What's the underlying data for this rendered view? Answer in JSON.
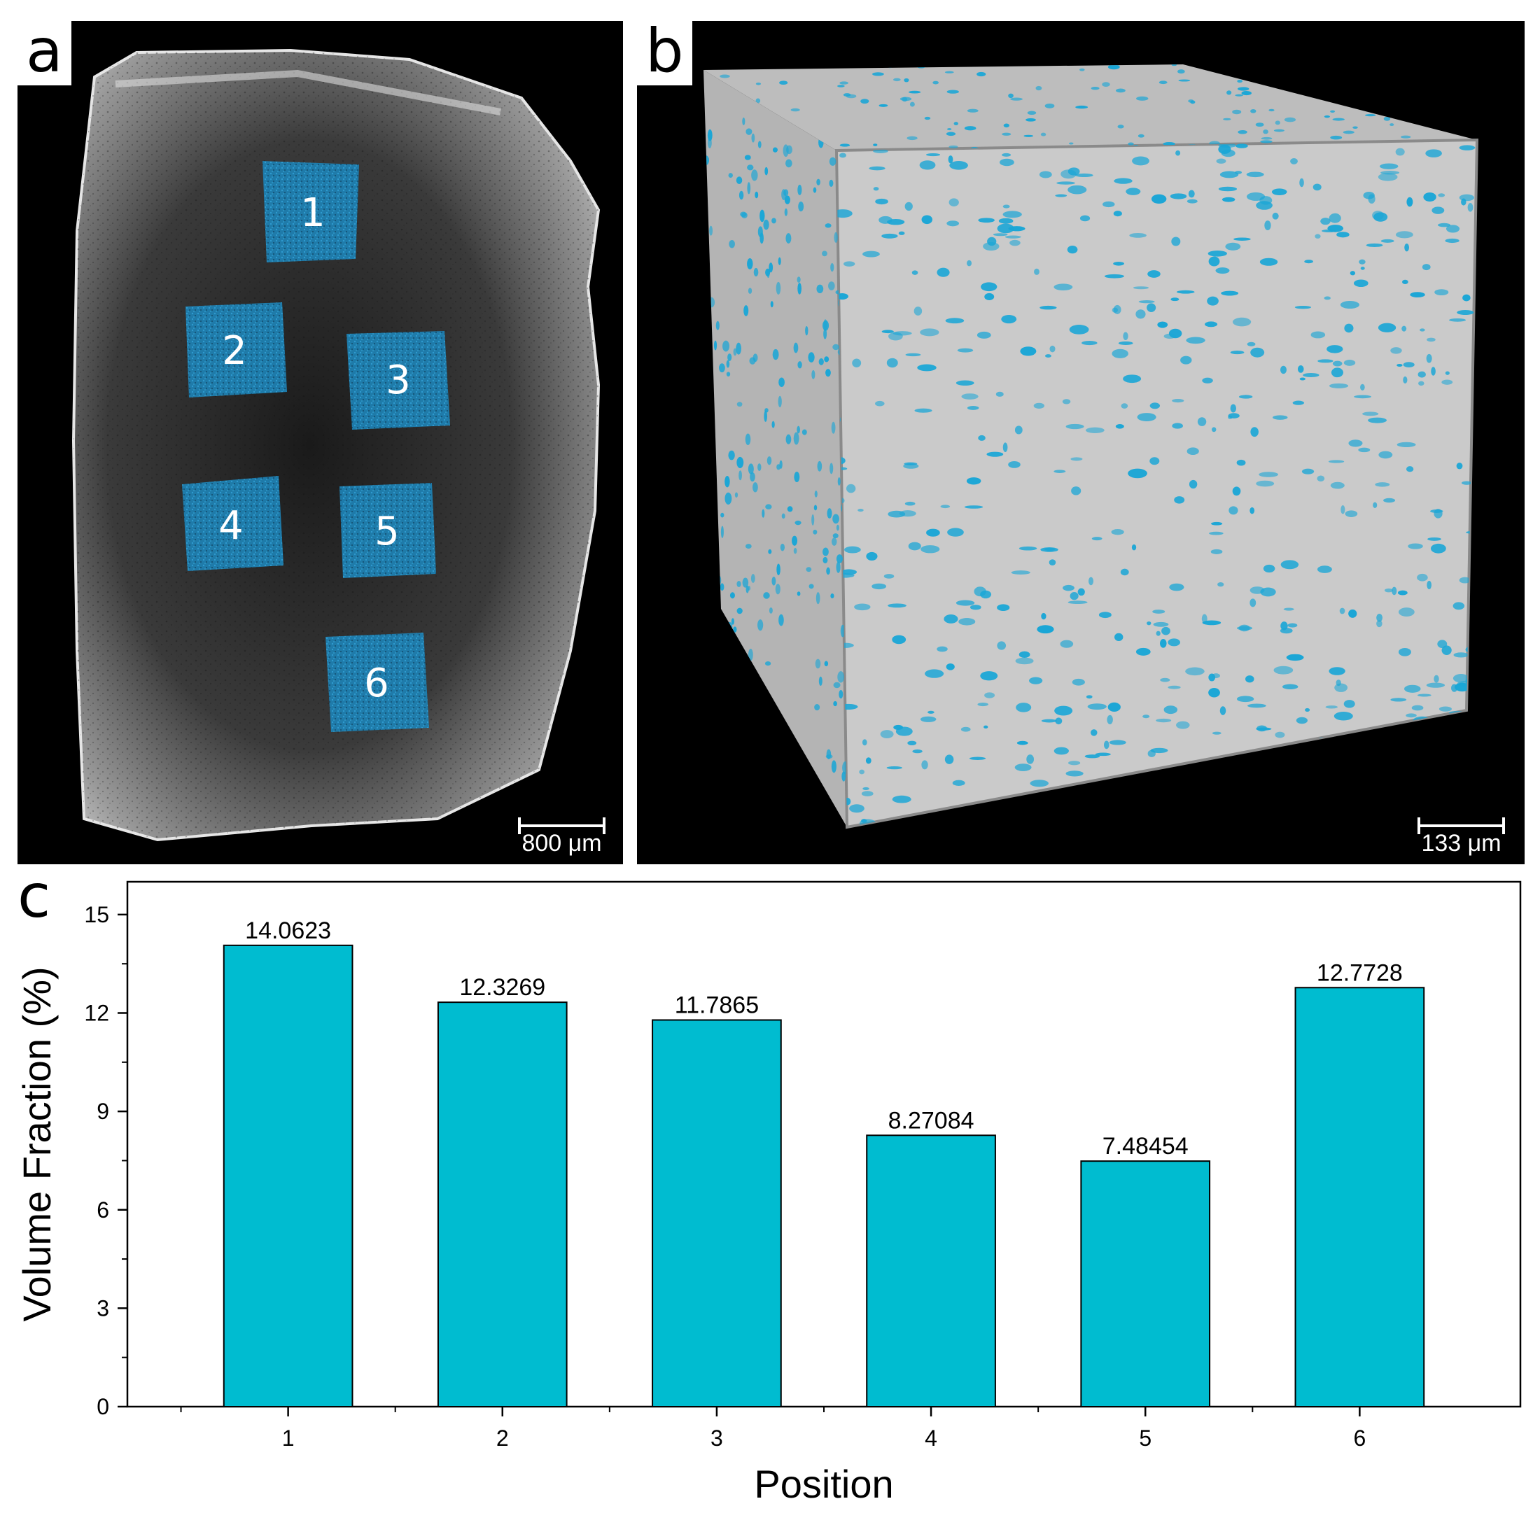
{
  "panels": {
    "a": {
      "letter": "a",
      "scale_label": "800 μm",
      "regions": [
        "1",
        "2",
        "3",
        "4",
        "5",
        "6"
      ]
    },
    "b": {
      "letter": "b",
      "scale_label": "133 μm"
    },
    "c": {
      "letter": "c"
    }
  },
  "colors": {
    "bar_fill": "#00BCD0",
    "bar_stroke": "#000000",
    "region_fill": "#1E7FB0",
    "pore_color": "#1AA6D6",
    "cube_face": "#C8C8C8"
  },
  "chart_data": {
    "type": "bar",
    "categories": [
      "1",
      "2",
      "3",
      "4",
      "5",
      "6"
    ],
    "values": [
      14.0623,
      12.3269,
      11.7865,
      8.27084,
      7.48454,
      12.7728
    ],
    "value_labels": [
      "14.0623",
      "12.3269",
      "11.7865",
      "8.27084",
      "7.48454",
      "12.7728"
    ],
    "xlabel": "Position",
    "ylabel": "Volume Fraction (%)",
    "ylim": [
      0,
      16
    ],
    "yticks": [
      0,
      3,
      6,
      9,
      12,
      15
    ],
    "grid": false,
    "legend": "none"
  }
}
